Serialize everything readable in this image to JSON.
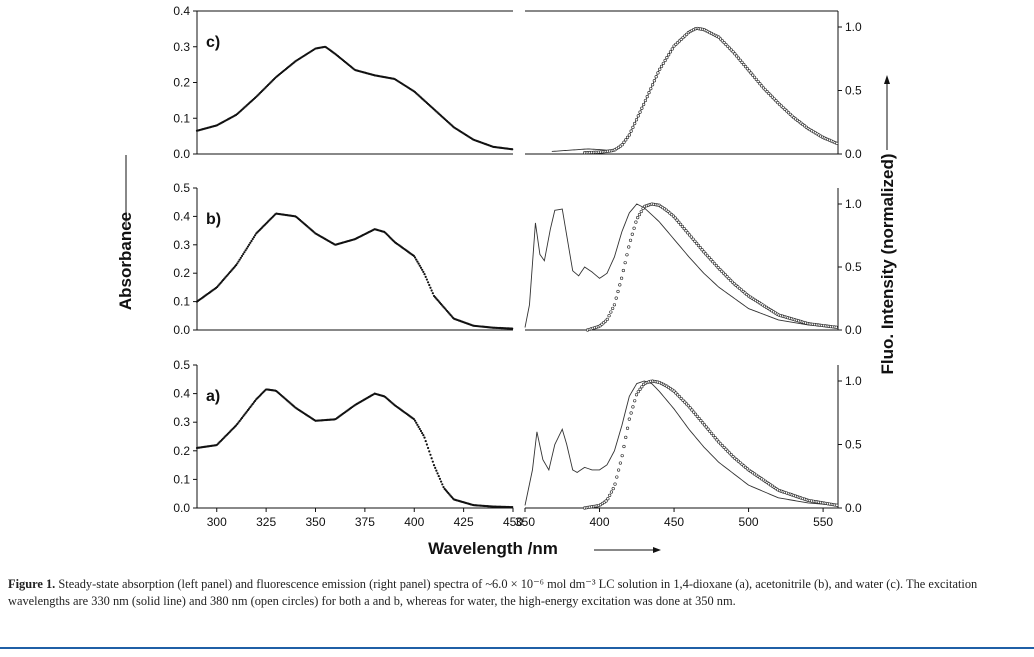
{
  "chart_data": {
    "type": "line",
    "x_axis_title": "Wavelength /nm",
    "y_left_title": "Absorbance",
    "y_right_title": "Fluo. Intensity (normalized)",
    "absorption_xlim": [
      290,
      450
    ],
    "absorption_xticks": [
      "300",
      "325",
      "350",
      "375",
      "400",
      "425",
      "450"
    ],
    "emission_xlim": [
      350,
      560
    ],
    "emission_xticks": [
      "350",
      "400",
      "450",
      "500",
      "550"
    ],
    "emission_yticks": [
      "0.0",
      "0.5",
      "1.0"
    ],
    "panels": [
      {
        "label": "c)",
        "absorption_ylim": [
          0,
          0.4
        ],
        "absorption_yticks": [
          "0.0",
          "0.1",
          "0.2",
          "0.3",
          "0.4"
        ],
        "absorption": {
          "x": [
            290,
            300,
            310,
            320,
            330,
            340,
            350,
            355,
            360,
            370,
            380,
            390,
            400,
            410,
            420,
            430,
            440,
            450
          ],
          "y": [
            0.065,
            0.08,
            0.11,
            0.16,
            0.215,
            0.26,
            0.295,
            0.3,
            0.28,
            0.235,
            0.22,
            0.21,
            0.175,
            0.125,
            0.075,
            0.04,
            0.02,
            0.013
          ]
        },
        "emission_solid": {
          "x": [
            368,
            380,
            392,
            400,
            405,
            410,
            415,
            420,
            430,
            440,
            450,
            460,
            465,
            470,
            480,
            490,
            500,
            510,
            520,
            530,
            540,
            550,
            560
          ],
          "y": [
            0.02,
            0.03,
            0.04,
            0.035,
            0.03,
            0.035,
            0.07,
            0.15,
            0.4,
            0.66,
            0.85,
            0.96,
            0.99,
            0.98,
            0.92,
            0.8,
            0.66,
            0.52,
            0.4,
            0.29,
            0.2,
            0.13,
            0.08
          ]
        },
        "emission_circles": {
          "x": [
            390,
            400,
            405,
            410,
            415,
            420,
            430,
            440,
            450,
            460,
            465,
            470,
            480,
            490,
            500,
            510,
            520,
            530,
            540,
            550,
            560
          ],
          "y": [
            0.01,
            0.015,
            0.02,
            0.03,
            0.07,
            0.15,
            0.4,
            0.66,
            0.85,
            0.96,
            0.99,
            0.98,
            0.92,
            0.8,
            0.66,
            0.52,
            0.4,
            0.29,
            0.2,
            0.13,
            0.08
          ]
        }
      },
      {
        "label": "b)",
        "absorption_ylim": [
          0,
          0.5
        ],
        "absorption_yticks": [
          "0.0",
          "0.1",
          "0.2",
          "0.3",
          "0.4",
          "0.5"
        ],
        "absorption": {
          "x": [
            290,
            300,
            310,
            320,
            330,
            340,
            350,
            360,
            370,
            380,
            385,
            390,
            400,
            405,
            410,
            420,
            430,
            440,
            450
          ],
          "y": [
            0.1,
            0.15,
            0.23,
            0.34,
            0.41,
            0.4,
            0.34,
            0.3,
            0.32,
            0.355,
            0.345,
            0.31,
            0.26,
            0.2,
            0.12,
            0.04,
            0.015,
            0.008,
            0.005
          ]
        },
        "emission_solid": {
          "x": [
            350,
            353,
            357,
            360,
            363,
            367,
            370,
            375,
            378,
            382,
            386,
            390,
            395,
            400,
            405,
            410,
            415,
            420,
            425,
            430,
            440,
            450,
            460,
            470,
            480,
            500,
            520,
            540,
            560
          ],
          "y": [
            0.02,
            0.2,
            0.85,
            0.6,
            0.55,
            0.8,
            0.95,
            0.96,
            0.75,
            0.47,
            0.43,
            0.5,
            0.46,
            0.41,
            0.45,
            0.58,
            0.78,
            0.93,
            1.0,
            0.97,
            0.86,
            0.72,
            0.58,
            0.45,
            0.34,
            0.17,
            0.08,
            0.04,
            0.02
          ]
        },
        "emission_circles": {
          "x": [
            392,
            400,
            405,
            410,
            415,
            420,
            425,
            430,
            435,
            440,
            445,
            450,
            460,
            470,
            480,
            490,
            500,
            520,
            540,
            560
          ],
          "y": [
            0.0,
            0.03,
            0.08,
            0.2,
            0.42,
            0.68,
            0.88,
            0.98,
            1.0,
            0.99,
            0.95,
            0.9,
            0.76,
            0.62,
            0.49,
            0.37,
            0.27,
            0.12,
            0.05,
            0.02
          ]
        }
      },
      {
        "label": "a)",
        "absorption_ylim": [
          0,
          0.5
        ],
        "absorption_yticks": [
          "0.0",
          "0.1",
          "0.2",
          "0.3",
          "0.4",
          "0.5"
        ],
        "absorption": {
          "x": [
            290,
            300,
            310,
            320,
            325,
            330,
            340,
            350,
            360,
            370,
            380,
            385,
            390,
            400,
            405,
            410,
            415,
            420,
            430,
            440,
            450
          ],
          "y": [
            0.21,
            0.22,
            0.29,
            0.38,
            0.415,
            0.41,
            0.35,
            0.305,
            0.31,
            0.36,
            0.4,
            0.39,
            0.36,
            0.31,
            0.25,
            0.15,
            0.07,
            0.03,
            0.01,
            0.005,
            0.003
          ]
        },
        "emission_solid": {
          "x": [
            350,
            355,
            358,
            362,
            366,
            370,
            375,
            378,
            382,
            385,
            390,
            395,
            400,
            405,
            410,
            415,
            420,
            425,
            430,
            435,
            440,
            450,
            460,
            470,
            480,
            500,
            520,
            540,
            560
          ],
          "y": [
            0.02,
            0.3,
            0.6,
            0.38,
            0.3,
            0.5,
            0.62,
            0.5,
            0.3,
            0.28,
            0.32,
            0.3,
            0.3,
            0.34,
            0.45,
            0.65,
            0.88,
            0.98,
            1.0,
            0.98,
            0.92,
            0.78,
            0.62,
            0.48,
            0.36,
            0.18,
            0.08,
            0.04,
            0.02
          ]
        },
        "emission_circles": {
          "x": [
            390,
            400,
            405,
            410,
            415,
            420,
            425,
            430,
            435,
            440,
            445,
            450,
            460,
            470,
            480,
            490,
            500,
            520,
            540,
            560
          ],
          "y": [
            0.0,
            0.02,
            0.06,
            0.17,
            0.4,
            0.7,
            0.9,
            0.98,
            1.0,
            0.99,
            0.96,
            0.92,
            0.8,
            0.66,
            0.52,
            0.4,
            0.3,
            0.14,
            0.06,
            0.02
          ]
        }
      }
    ]
  },
  "caption": {
    "label": "Figure 1.",
    "text": "Steady-state absorption (left panel) and fluorescence emission (right panel) spectra of ~6.0 × 10⁻⁶ mol dm⁻³ LC solution in 1,4-dioxane (a), acetonitrile (b), and water (c). The excitation wavelengths are 330 nm (solid line) and 380 nm (open circles) for both a and b, whereas for water, the high-energy excitation was done at 350 nm."
  }
}
